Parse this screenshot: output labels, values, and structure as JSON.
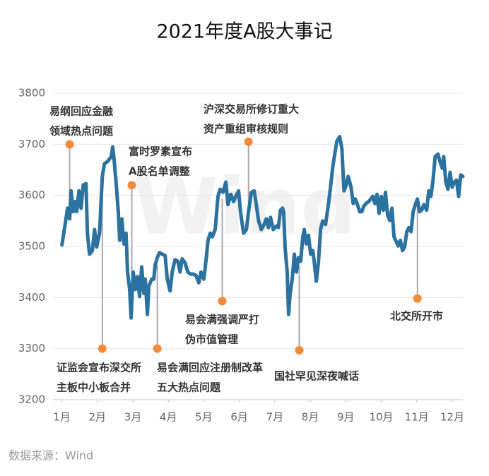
{
  "chart_data": {
    "type": "line",
    "title": "2021年度A股大事记",
    "source": "数据来源：Wind",
    "watermark": "Wind",
    "color": "#2b72a0",
    "grid": true,
    "xlim": [
      0.75,
      12.3
    ],
    "xticks": [
      {
        "value": 1,
        "label": "1月"
      },
      {
        "value": 2,
        "label": "2月"
      },
      {
        "value": 3,
        "label": "3月"
      },
      {
        "value": 4,
        "label": "4月"
      },
      {
        "value": 5,
        "label": "5月"
      },
      {
        "value": 6,
        "label": "6月"
      },
      {
        "value": 7,
        "label": "7月"
      },
      {
        "value": 8,
        "label": "8月"
      },
      {
        "value": 9,
        "label": "9月"
      },
      {
        "value": 10,
        "label": "10月"
      },
      {
        "value": 11,
        "label": "11月"
      },
      {
        "value": 12,
        "label": "12月"
      }
    ],
    "ylim": [
      3200,
      3800
    ],
    "yticks": [
      3200,
      3300,
      3400,
      3500,
      3600,
      3700,
      3800
    ],
    "x": [
      1.0,
      1.1,
      1.16,
      1.22,
      1.26,
      1.32,
      1.38,
      1.42,
      1.48,
      1.54,
      1.6,
      1.68,
      1.72,
      1.78,
      1.86,
      1.92,
      1.98,
      2.06,
      2.14,
      2.2,
      2.3,
      2.39,
      2.43,
      2.47,
      2.53,
      2.59,
      2.63,
      2.69,
      2.75,
      2.81,
      2.85,
      2.91,
      2.95,
      3.01,
      3.07,
      3.13,
      3.19,
      3.25,
      3.31,
      3.35,
      3.41,
      3.45,
      3.53,
      3.59,
      3.63,
      3.69,
      3.75,
      3.83,
      3.91,
      3.97,
      4.05,
      4.11,
      4.19,
      4.27,
      4.33,
      4.39,
      4.47,
      4.55,
      4.63,
      4.71,
      4.78,
      4.86,
      4.92,
      5.0,
      5.06,
      5.12,
      5.18,
      5.24,
      5.32,
      5.4,
      5.46,
      5.54,
      5.62,
      5.68,
      5.76,
      5.84,
      5.9,
      5.98,
      6.04,
      6.12,
      6.2,
      6.26,
      6.34,
      6.42,
      6.48,
      6.54,
      6.62,
      6.7,
      6.76,
      6.82,
      6.88,
      6.96,
      7.04,
      7.1,
      7.16,
      7.22,
      7.25,
      7.29,
      7.35,
      7.39,
      7.43,
      7.49,
      7.55,
      7.61,
      7.67,
      7.73,
      7.79,
      7.83,
      7.89,
      7.95,
      8.01,
      8.07,
      8.11,
      8.17,
      8.23,
      8.29,
      8.35,
      8.43,
      8.51,
      8.57,
      8.63,
      8.69,
      8.75,
      8.83,
      8.89,
      8.95,
      9.01,
      9.07,
      9.15,
      9.21,
      9.27,
      9.33,
      9.39,
      9.45,
      9.51,
      9.57,
      9.65,
      9.71,
      9.76,
      9.82,
      9.88,
      9.94,
      10.0,
      10.06,
      10.12,
      10.18,
      10.24,
      10.3,
      10.36,
      10.42,
      10.48,
      10.54,
      10.6,
      10.66,
      10.72,
      10.78,
      10.84,
      10.9,
      10.96,
      11.02,
      11.08,
      11.14,
      11.2,
      11.28,
      11.34,
      11.4,
      11.46,
      11.52,
      11.6,
      11.66,
      11.72,
      11.76,
      11.82,
      11.88,
      11.94,
      12.0,
      12.06,
      12.12,
      12.18,
      12.24,
      12.3
    ],
    "values": [
      3503,
      3547,
      3575,
      3554,
      3609,
      3568,
      3588,
      3568,
      3609,
      3575,
      3620,
      3623,
      3526,
      3485,
      3492,
      3533,
      3499,
      3526,
      3637,
      3662,
      3667,
      3676,
      3695,
      3671,
      3623,
      3568,
      3512,
      3554,
      3505,
      3526,
      3450,
      3416,
      3360,
      3450,
      3416,
      3441,
      3402,
      3460,
      3408,
      3436,
      3367,
      3422,
      3436,
      3436,
      3464,
      3478,
      3488,
      3485,
      3482,
      3436,
      3413,
      3450,
      3474,
      3471,
      3450,
      3476,
      3468,
      3450,
      3446,
      3446,
      3443,
      3429,
      3450,
      3436,
      3471,
      3512,
      3526,
      3519,
      3533,
      3598,
      3612,
      3606,
      3626,
      3582,
      3602,
      3588,
      3598,
      3609,
      3565,
      3526,
      3533,
      3568,
      3606,
      3609,
      3582,
      3551,
      3533,
      3543,
      3554,
      3537,
      3557,
      3533,
      3540,
      3537,
      3571,
      3575,
      3568,
      3499,
      3450,
      3367,
      3405,
      3436,
      3485,
      3450,
      3478,
      3471,
      3519,
      3533,
      3505,
      3522,
      3485,
      3492,
      3471,
      3432,
      3468,
      3533,
      3550,
      3543,
      3582,
      3616,
      3653,
      3681,
      3706,
      3715,
      3692,
      3609,
      3620,
      3637,
      3616,
      3584,
      3593,
      3582,
      3568,
      3568,
      3579,
      3584,
      3588,
      3593,
      3598,
      3584,
      3602,
      3565,
      3598,
      3571,
      3606,
      3561,
      3551,
      3575,
      3519,
      3510,
      3501,
      3512,
      3492,
      3499,
      3529,
      3537,
      3529,
      3568,
      3582,
      3593,
      3568,
      3571,
      3582,
      3571,
      3609,
      3598,
      3630,
      3676,
      3681,
      3665,
      3653,
      3676,
      3626,
      3612,
      3645,
      3616,
      3626,
      3630,
      3598,
      3640,
      3637
    ],
    "annotation_color": "#f28b3a",
    "annotations": [
      {
        "lines": [
          "易纲回应金融",
          "领域热点问题"
        ],
        "x": 1.22,
        "y": 3700
      },
      {
        "lines": [
          "证监会宣布深交所",
          "主板中小板合并"
        ],
        "x": 2.14,
        "y": 3300
      },
      {
        "lines": [
          "富时罗素宣布",
          "A股名单调整"
        ],
        "x": 2.97,
        "y": 3620
      },
      {
        "lines": [
          "易会满回应注册制改革",
          "五大热点问题"
        ],
        "x": 3.69,
        "y": 3300
      },
      {
        "lines": [
          "易会满强调严打",
          "伪市值管理"
        ],
        "x": 5.52,
        "y": 3393
      },
      {
        "lines": [
          "沪深交易所修订重大",
          "资产重组审核规则"
        ],
        "x": 6.26,
        "y": 3705
      },
      {
        "lines": [
          "国社罕见深夜喊话"
        ],
        "x": 7.69,
        "y": 3297
      },
      {
        "lines": [
          "北交所开市"
        ],
        "x": 11.02,
        "y": 3398
      }
    ]
  }
}
